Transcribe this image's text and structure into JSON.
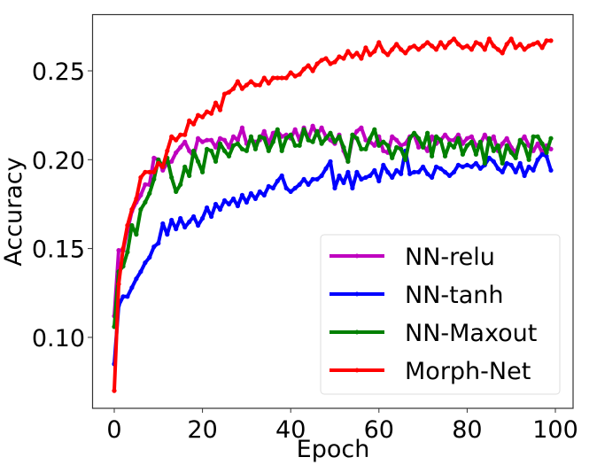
{
  "chart_data": {
    "type": "line",
    "title": "",
    "xlabel": "Epoch",
    "ylabel": "Accuracy",
    "xlim": [
      -5,
      104
    ],
    "ylim": [
      0.059,
      0.282
    ],
    "xticks": [
      0,
      20,
      40,
      60,
      80,
      100
    ],
    "yticks": [
      0.1,
      0.15,
      0.2,
      0.25
    ],
    "ytick_labels": [
      "0.10",
      "0.15",
      "0.20",
      "0.25"
    ],
    "grid": false,
    "legend_position": "lower right",
    "x": [
      0,
      1,
      2,
      3,
      4,
      5,
      6,
      7,
      8,
      9,
      10,
      11,
      12,
      13,
      14,
      15,
      16,
      17,
      18,
      19,
      20,
      21,
      22,
      23,
      24,
      25,
      26,
      27,
      28,
      29,
      30,
      31,
      32,
      33,
      34,
      35,
      36,
      37,
      38,
      39,
      40,
      41,
      42,
      43,
      44,
      45,
      46,
      47,
      48,
      49,
      50,
      51,
      52,
      53,
      54,
      55,
      56,
      57,
      58,
      59,
      60,
      61,
      62,
      63,
      64,
      65,
      66,
      67,
      68,
      69,
      70,
      71,
      72,
      73,
      74,
      75,
      76,
      77,
      78,
      79,
      80,
      81,
      82,
      83,
      84,
      85,
      86,
      87,
      88,
      89,
      90,
      91,
      92,
      93,
      94,
      95,
      96,
      97,
      98,
      99
    ],
    "series": [
      {
        "name": "NN-relu",
        "color": "#bf00bf",
        "values": [
          0.112,
          0.149,
          0.149,
          0.16,
          0.171,
          0.176,
          0.18,
          0.186,
          0.186,
          0.201,
          0.2,
          0.194,
          0.198,
          0.199,
          0.204,
          0.207,
          0.21,
          0.205,
          0.202,
          0.212,
          0.21,
          0.211,
          0.211,
          0.207,
          0.212,
          0.211,
          0.207,
          0.213,
          0.211,
          0.218,
          0.209,
          0.211,
          0.21,
          0.211,
          0.216,
          0.209,
          0.215,
          0.216,
          0.213,
          0.214,
          0.212,
          0.217,
          0.211,
          0.218,
          0.212,
          0.219,
          0.214,
          0.218,
          0.213,
          0.211,
          0.209,
          0.214,
          0.205,
          0.199,
          0.212,
          0.216,
          0.218,
          0.211,
          0.21,
          0.208,
          0.213,
          0.205,
          0.204,
          0.213,
          0.211,
          0.208,
          0.209,
          0.213,
          0.214,
          0.207,
          0.208,
          0.205,
          0.213,
          0.209,
          0.211,
          0.214,
          0.211,
          0.211,
          0.214,
          0.209,
          0.212,
          0.213,
          0.208,
          0.209,
          0.214,
          0.21,
          0.213,
          0.205,
          0.209,
          0.212,
          0.207,
          0.204,
          0.21,
          0.213,
          0.208,
          0.205,
          0.209,
          0.204,
          0.208,
          0.206
        ]
      },
      {
        "name": "NN-tanh",
        "color": "#0000ff",
        "values": [
          0.085,
          0.118,
          0.123,
          0.123,
          0.128,
          0.133,
          0.137,
          0.142,
          0.145,
          0.151,
          0.153,
          0.164,
          0.158,
          0.166,
          0.161,
          0.167,
          0.162,
          0.165,
          0.168,
          0.163,
          0.167,
          0.173,
          0.168,
          0.175,
          0.172,
          0.177,
          0.175,
          0.178,
          0.174,
          0.18,
          0.176,
          0.181,
          0.178,
          0.182,
          0.18,
          0.185,
          0.184,
          0.188,
          0.191,
          0.184,
          0.182,
          0.184,
          0.186,
          0.189,
          0.186,
          0.189,
          0.189,
          0.191,
          0.195,
          0.199,
          0.184,
          0.191,
          0.187,
          0.193,
          0.184,
          0.193,
          0.189,
          0.19,
          0.191,
          0.194,
          0.188,
          0.197,
          0.193,
          0.19,
          0.194,
          0.192,
          0.205,
          0.192,
          0.193,
          0.193,
          0.196,
          0.192,
          0.19,
          0.196,
          0.195,
          0.193,
          0.191,
          0.193,
          0.197,
          0.196,
          0.197,
          0.196,
          0.198,
          0.195,
          0.197,
          0.201,
          0.199,
          0.195,
          0.193,
          0.198,
          0.197,
          0.193,
          0.198,
          0.191,
          0.196,
          0.194,
          0.2,
          0.203,
          0.202,
          0.194
        ]
      },
      {
        "name": "NN-Maxout",
        "color": "#008000",
        "values": [
          0.106,
          0.137,
          0.14,
          0.148,
          0.163,
          0.158,
          0.172,
          0.176,
          0.181,
          0.189,
          0.2,
          0.196,
          0.201,
          0.19,
          0.182,
          0.186,
          0.196,
          0.191,
          0.205,
          0.199,
          0.193,
          0.206,
          0.205,
          0.199,
          0.209,
          0.205,
          0.202,
          0.208,
          0.209,
          0.206,
          0.205,
          0.213,
          0.206,
          0.213,
          0.212,
          0.205,
          0.21,
          0.217,
          0.205,
          0.212,
          0.214,
          0.208,
          0.208,
          0.217,
          0.211,
          0.21,
          0.216,
          0.209,
          0.212,
          0.215,
          0.21,
          0.213,
          0.207,
          0.199,
          0.214,
          0.212,
          0.206,
          0.206,
          0.212,
          0.217,
          0.208,
          0.21,
          0.208,
          0.201,
          0.207,
          0.206,
          0.2,
          0.212,
          0.215,
          0.212,
          0.207,
          0.215,
          0.202,
          0.213,
          0.211,
          0.202,
          0.209,
          0.207,
          0.212,
          0.203,
          0.208,
          0.21,
          0.203,
          0.21,
          0.198,
          0.212,
          0.205,
          0.208,
          0.198,
          0.208,
          0.204,
          0.201,
          0.211,
          0.208,
          0.2,
          0.213,
          0.213,
          0.209,
          0.204,
          0.212
        ]
      },
      {
        "name": "Morph-Net",
        "color": "#ff0000",
        "values": [
          0.07,
          0.13,
          0.15,
          0.163,
          0.172,
          0.178,
          0.19,
          0.193,
          0.193,
          0.193,
          0.198,
          0.196,
          0.205,
          0.213,
          0.211,
          0.214,
          0.214,
          0.222,
          0.22,
          0.225,
          0.224,
          0.227,
          0.226,
          0.232,
          0.228,
          0.237,
          0.238,
          0.24,
          0.244,
          0.24,
          0.242,
          0.244,
          0.242,
          0.242,
          0.246,
          0.243,
          0.246,
          0.246,
          0.246,
          0.246,
          0.249,
          0.247,
          0.248,
          0.251,
          0.253,
          0.25,
          0.254,
          0.256,
          0.257,
          0.254,
          0.255,
          0.258,
          0.257,
          0.261,
          0.258,
          0.26,
          0.257,
          0.263,
          0.259,
          0.261,
          0.266,
          0.261,
          0.259,
          0.262,
          0.265,
          0.262,
          0.26,
          0.263,
          0.264,
          0.262,
          0.264,
          0.266,
          0.264,
          0.262,
          0.266,
          0.263,
          0.266,
          0.268,
          0.265,
          0.263,
          0.264,
          0.262,
          0.266,
          0.265,
          0.262,
          0.268,
          0.264,
          0.262,
          0.26,
          0.265,
          0.268,
          0.263,
          0.265,
          0.262,
          0.264,
          0.265,
          0.266,
          0.263,
          0.267,
          0.267
        ]
      }
    ]
  },
  "legend": {
    "items": [
      {
        "label": "NN-relu",
        "color": "#bf00bf"
      },
      {
        "label": "NN-tanh",
        "color": "#0000ff"
      },
      {
        "label": "NN-Maxout",
        "color": "#008000"
      },
      {
        "label": "Morph-Net",
        "color": "#ff0000"
      }
    ]
  }
}
